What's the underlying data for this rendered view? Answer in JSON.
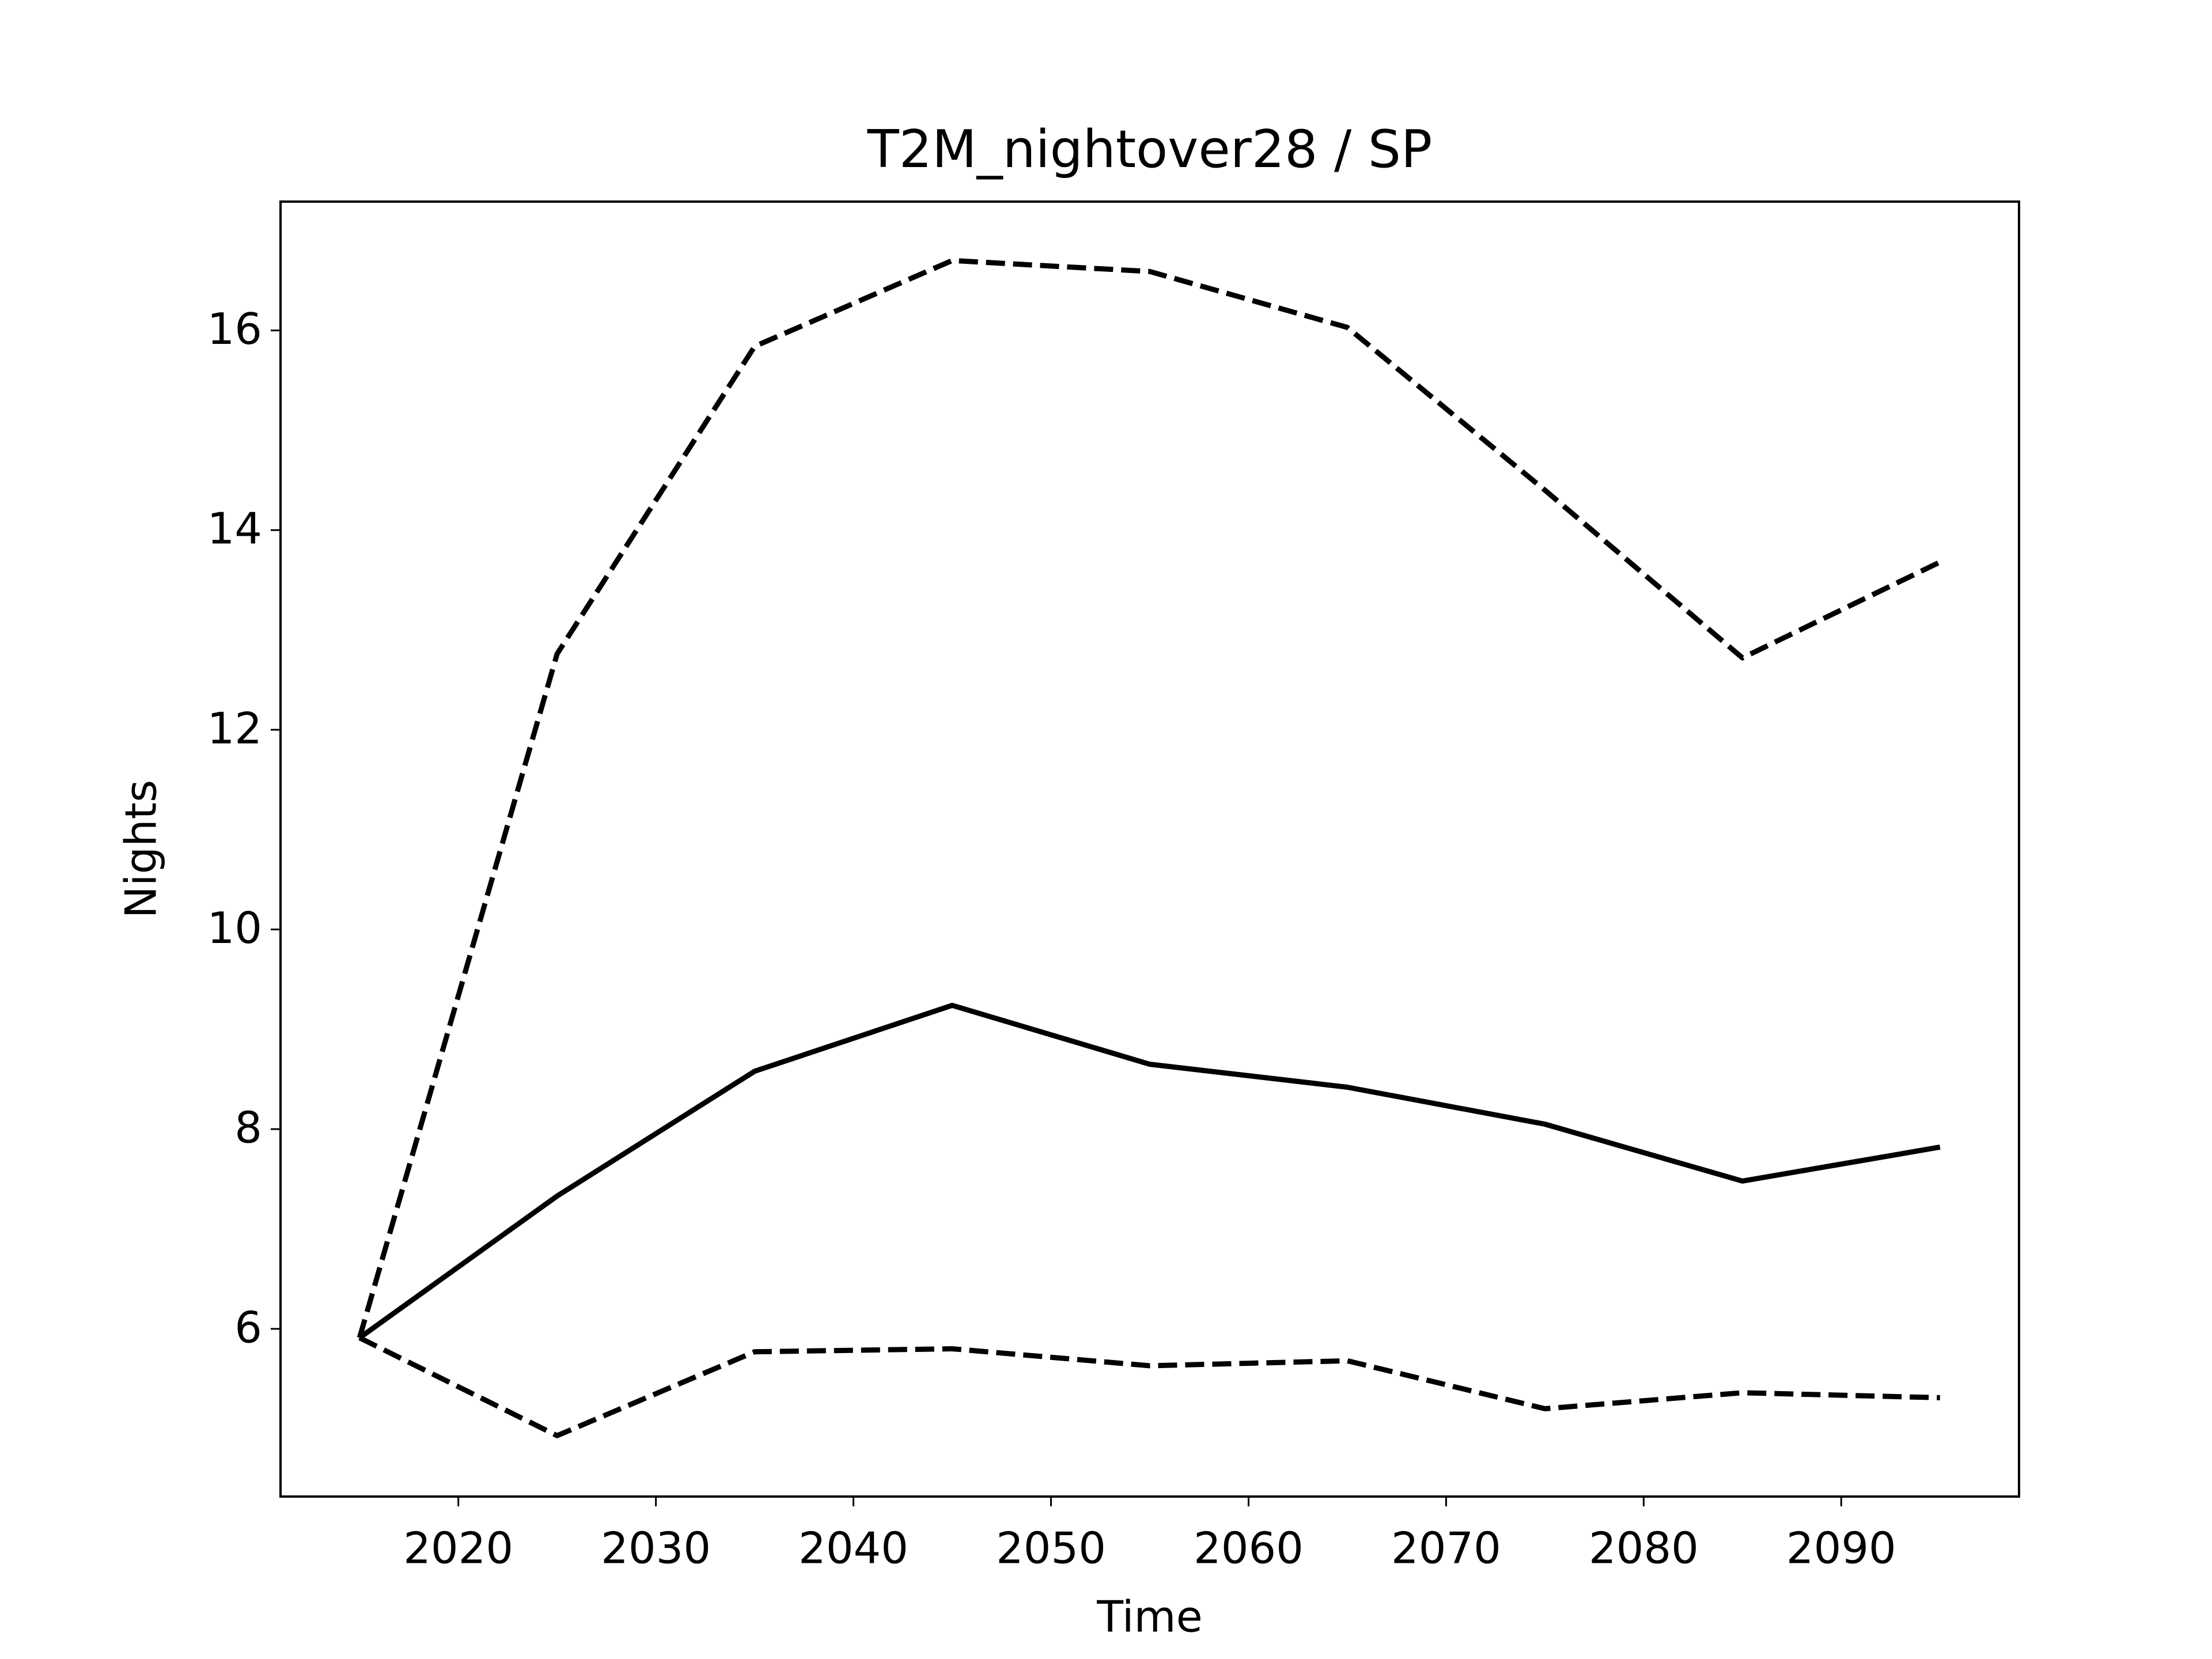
{
  "chart_data": {
    "type": "line",
    "title": "T2M_nightover28 / SP",
    "x_label": "Time",
    "y_label": "Nights",
    "x": [
      2015,
      2025,
      2035,
      2045,
      2055,
      2065,
      2075,
      2085,
      2095
    ],
    "series": [
      {
        "color": "#000000",
        "linestyle": "solid",
        "values": [
          5.91,
          7.33,
          8.58,
          9.24,
          8.65,
          8.42,
          8.05,
          7.48,
          7.82
        ]
      },
      {
        "color": "#000000",
        "linestyle": "dashed",
        "values": [
          5.91,
          12.76,
          15.84,
          16.7,
          16.59,
          16.03,
          14.4,
          12.72,
          13.68
        ]
      },
      {
        "color": "#000000",
        "linestyle": "dashed",
        "values": [
          5.91,
          4.93,
          5.77,
          5.8,
          5.63,
          5.68,
          5.2,
          5.36,
          5.31
        ]
      }
    ],
    "xlim": [
      2011,
      2099
    ],
    "xticks": [
      2020,
      2030,
      2040,
      2050,
      2060,
      2070,
      2080,
      2090
    ],
    "ylim": [
      4.32,
      17.29
    ],
    "yticks": [
      6,
      8,
      10,
      12,
      14,
      16
    ],
    "grid": false
  }
}
